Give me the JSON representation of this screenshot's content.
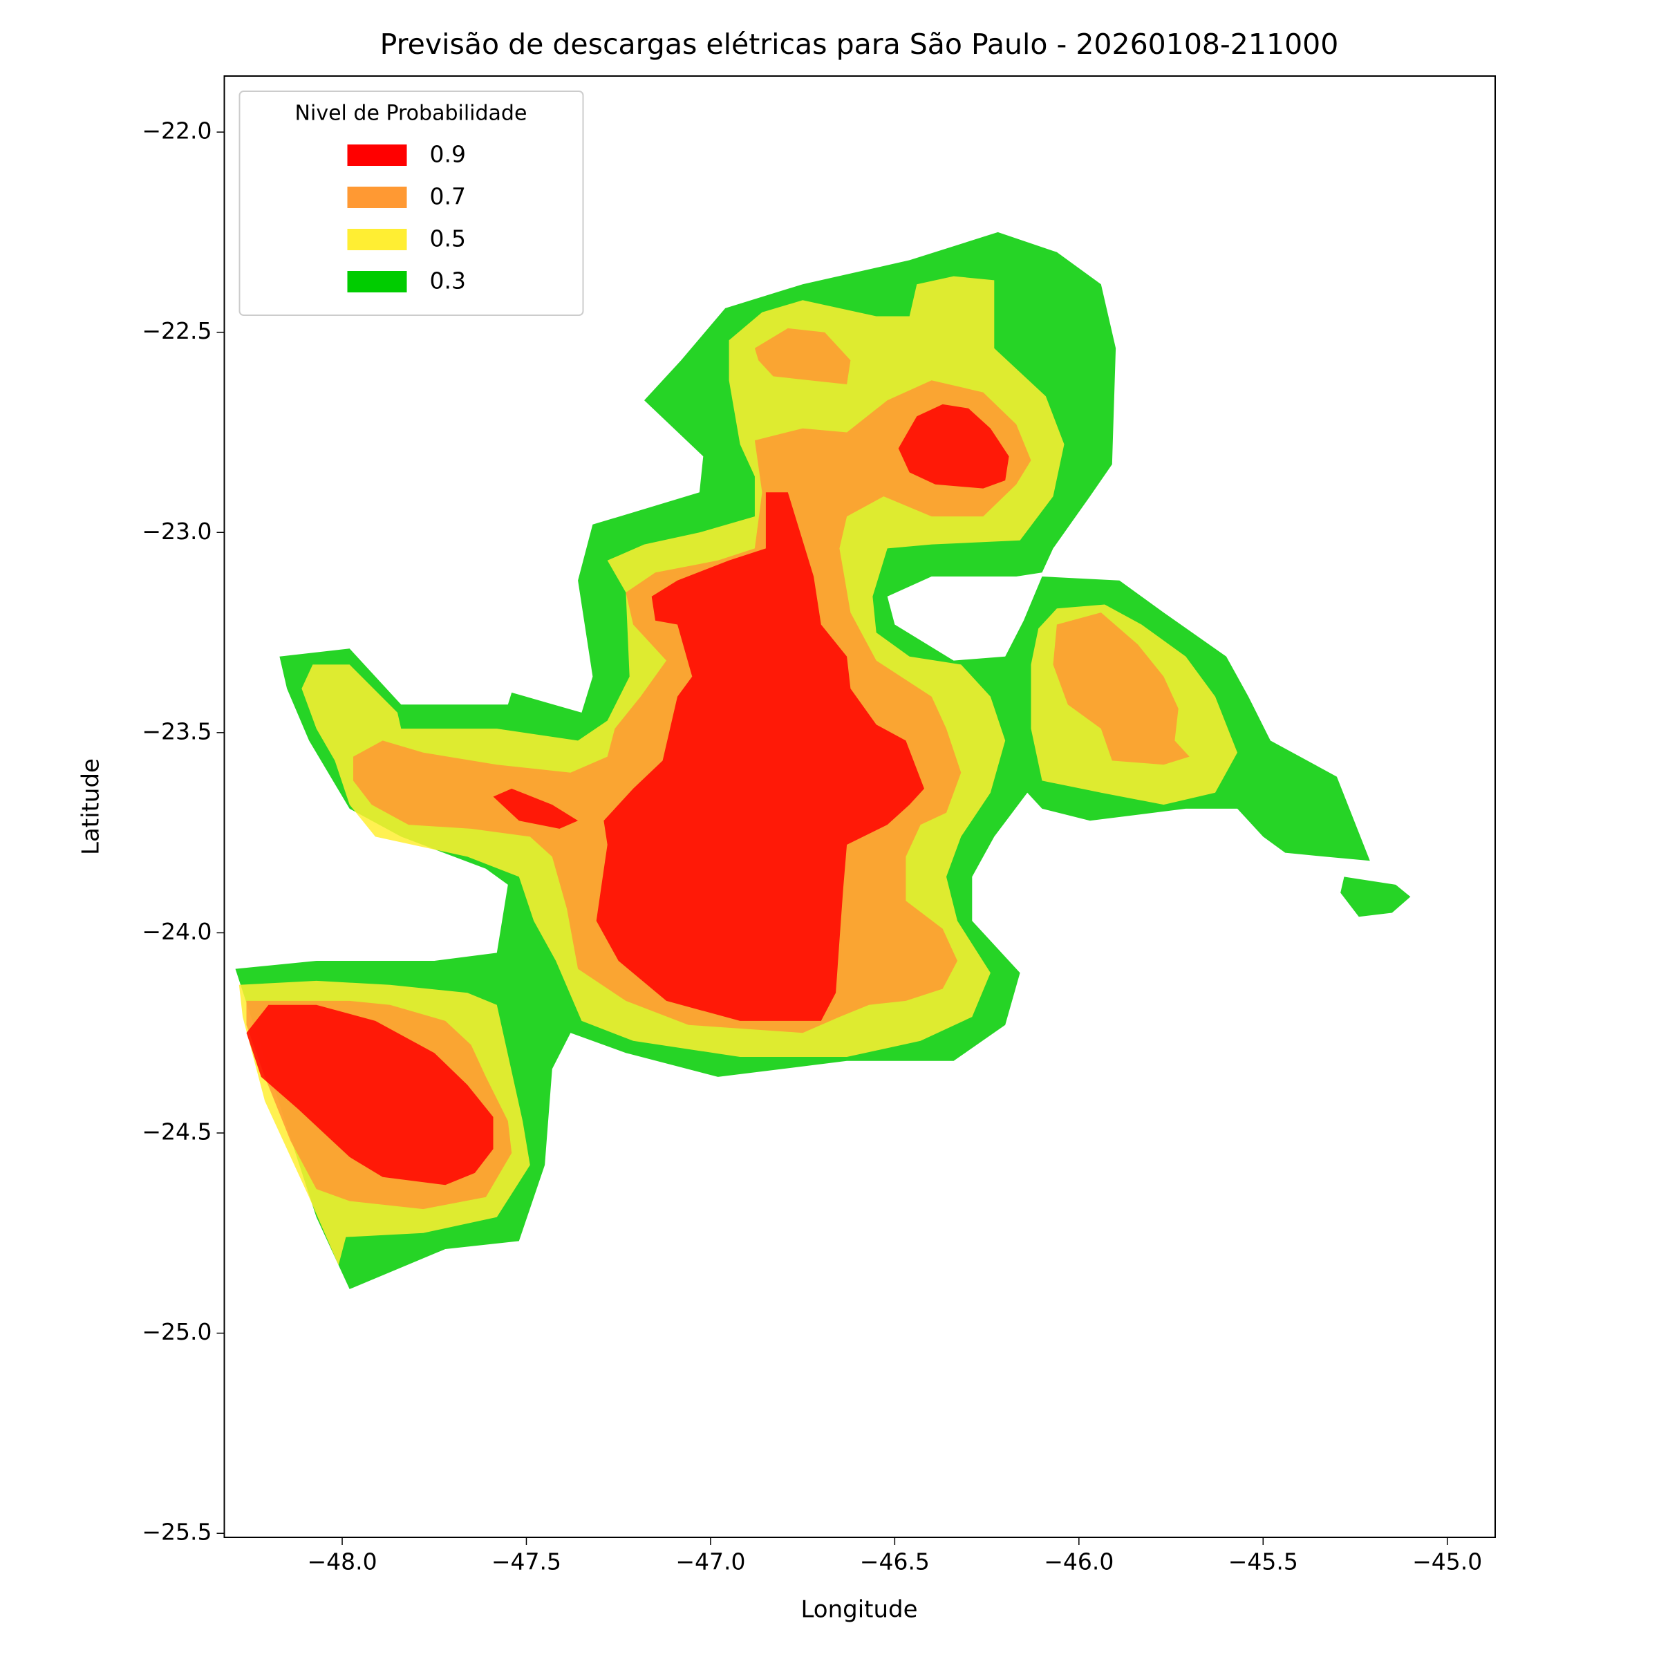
{
  "chart_data": {
    "type": "contour",
    "title": "Previsão de descargas elétricas para São Paulo - 20260108-211000",
    "xlabel": "Longitude",
    "ylabel": "Latitude",
    "xlim": [
      -48.32,
      -44.87
    ],
    "ylim": [
      -25.51,
      -21.86
    ],
    "xticks": [
      {
        "value": -48.0,
        "label": "−48.0"
      },
      {
        "value": -47.5,
        "label": "−47.5"
      },
      {
        "value": -47.0,
        "label": "−47.0"
      },
      {
        "value": -46.5,
        "label": "−46.5"
      },
      {
        "value": -46.0,
        "label": "−46.0"
      },
      {
        "value": -45.5,
        "label": "−45.5"
      },
      {
        "value": -45.0,
        "label": "−45.0"
      }
    ],
    "yticks": [
      {
        "value": -22.0,
        "label": "−22.0"
      },
      {
        "value": -22.5,
        "label": "−22.5"
      },
      {
        "value": -23.0,
        "label": "−23.0"
      },
      {
        "value": -23.5,
        "label": "−23.5"
      },
      {
        "value": -24.0,
        "label": "−24.0"
      },
      {
        "value": -24.5,
        "label": "−24.5"
      },
      {
        "value": -25.0,
        "label": "−25.0"
      },
      {
        "value": -25.5,
        "label": "−25.5"
      }
    ],
    "legend_title": "Nivel de Probabilidade",
    "legend_position": "upper left",
    "fill_opacity": 0.85,
    "series": [
      {
        "name": "0.9",
        "color": "#ff0000",
        "regions": [
          {
            "x": [
              -47.16,
              -47.09,
              -46.95,
              -46.85,
              -46.85,
              -46.79,
              -46.72,
              -46.7,
              -46.63,
              -46.62,
              -46.55,
              -46.47,
              -46.42,
              -46.46,
              -46.52,
              -46.63,
              -46.64,
              -46.65,
              -46.66,
              -46.7,
              -46.92,
              -47.12,
              -47.25,
              -47.31,
              -47.28,
              -47.29,
              -47.21,
              -47.13,
              -47.09,
              -47.05,
              -47.09,
              -47.15
            ],
            "y": [
              -23.16,
              -23.12,
              -23.07,
              -23.04,
              -22.9,
              -22.9,
              -23.11,
              -23.23,
              -23.31,
              -23.39,
              -23.48,
              -23.52,
              -23.64,
              -23.68,
              -23.73,
              -23.78,
              -23.89,
              -24.02,
              -24.15,
              -24.22,
              -24.22,
              -24.17,
              -24.07,
              -23.97,
              -23.78,
              -23.72,
              -23.64,
              -23.57,
              -23.41,
              -23.36,
              -23.23,
              -23.22
            ]
          },
          {
            "x": [
              -47.59,
              -47.54,
              -47.43,
              -47.36,
              -47.41,
              -47.52
            ],
            "y": [
              -23.66,
              -23.64,
              -23.68,
              -23.72,
              -23.74,
              -23.72
            ]
          },
          {
            "x": [
              -46.49,
              -46.44,
              -46.37,
              -46.3,
              -46.24,
              -46.19,
              -46.2,
              -46.26,
              -46.39,
              -46.46
            ],
            "y": [
              -22.79,
              -22.71,
              -22.68,
              -22.69,
              -22.74,
              -22.81,
              -22.87,
              -22.89,
              -22.88,
              -22.85
            ]
          },
          {
            "x": [
              -48.26,
              -48.2,
              -48.07,
              -47.91,
              -47.75,
              -47.66,
              -47.59,
              -47.59,
              -47.64,
              -47.72,
              -47.89,
              -47.98,
              -48.12,
              -48.22
            ],
            "y": [
              -24.25,
              -24.18,
              -24.18,
              -24.22,
              -24.3,
              -24.38,
              -24.46,
              -24.54,
              -24.6,
              -24.63,
              -24.61,
              -24.56,
              -24.44,
              -24.36
            ]
          }
        ]
      },
      {
        "name": "0.7",
        "color": "#ff9933",
        "regions": [
          {
            "x": [
              -47.97,
              -47.89,
              -47.78,
              -47.58,
              -47.38,
              -47.28,
              -47.26,
              -47.19,
              -47.12,
              -47.21,
              -47.23,
              -47.15,
              -46.98,
              -46.88,
              -46.86,
              -46.88,
              -46.75,
              -46.63,
              -46.52,
              -46.4,
              -46.26,
              -46.17,
              -46.13,
              -46.17,
              -46.26,
              -46.4,
              -46.53,
              -46.63,
              -46.65,
              -46.62,
              -46.55,
              -46.4,
              -46.36,
              -46.32,
              -46.36,
              -46.43,
              -46.47,
              -46.47,
              -46.37,
              -46.33,
              -46.37,
              -46.47,
              -46.57,
              -46.65,
              -46.75,
              -47.06,
              -47.23,
              -47.36,
              -47.39,
              -47.43,
              -47.49,
              -47.65,
              -47.82,
              -47.92,
              -47.97
            ],
            "y": [
              -23.56,
              -23.52,
              -23.55,
              -23.58,
              -23.6,
              -23.56,
              -23.49,
              -23.41,
              -23.32,
              -23.23,
              -23.15,
              -23.1,
              -23.07,
              -23.04,
              -22.9,
              -22.77,
              -22.74,
              -22.75,
              -22.67,
              -22.62,
              -22.65,
              -22.73,
              -22.82,
              -22.88,
              -22.96,
              -22.96,
              -22.91,
              -22.96,
              -23.04,
              -23.2,
              -23.32,
              -23.41,
              -23.49,
              -23.6,
              -23.7,
              -23.73,
              -23.81,
              -23.92,
              -23.99,
              -24.07,
              -24.14,
              -24.17,
              -24.18,
              -24.21,
              -24.25,
              -24.23,
              -24.17,
              -24.09,
              -23.94,
              -23.81,
              -23.76,
              -23.74,
              -23.73,
              -23.68,
              -23.62
            ]
          },
          {
            "x": [
              -46.88,
              -46.79,
              -46.69,
              -46.62,
              -46.63,
              -46.73,
              -46.83,
              -46.87
            ],
            "y": [
              -22.54,
              -22.49,
              -22.5,
              -22.57,
              -22.63,
              -22.62,
              -22.61,
              -22.57
            ]
          },
          {
            "x": [
              -48.26,
              -47.98,
              -47.87,
              -47.72,
              -47.65,
              -47.61,
              -47.55,
              -47.54,
              -47.61,
              -47.78,
              -47.98,
              -48.07,
              -48.14,
              -48.21,
              -48.26
            ],
            "y": [
              -24.17,
              -24.17,
              -24.18,
              -24.22,
              -24.28,
              -24.36,
              -24.47,
              -24.55,
              -24.66,
              -24.69,
              -24.67,
              -24.64,
              -24.52,
              -24.36,
              -24.23
            ]
          },
          {
            "x": [
              -46.06,
              -45.94,
              -45.84,
              -45.77,
              -45.73,
              -45.74,
              -45.7,
              -45.77,
              -45.91,
              -45.94,
              -46.03,
              -46.07
            ],
            "y": [
              -23.23,
              -23.2,
              -23.28,
              -23.36,
              -23.44,
              -23.52,
              -23.56,
              -23.58,
              -23.57,
              -23.49,
              -23.43,
              -23.33
            ]
          }
        ]
      },
      {
        "name": "0.5",
        "color": "#ffee33",
        "regions": [
          {
            "x": [
              -48.08,
              -47.98,
              -47.85,
              -47.84,
              -47.58,
              -47.36,
              -47.28,
              -47.22,
              -47.23,
              -47.28,
              -47.18,
              -47.03,
              -46.88,
              -46.88,
              -46.92,
              -46.95,
              -46.95,
              -46.86,
              -46.75,
              -46.55,
              -46.46,
              -46.44,
              -46.34,
              -46.23,
              -46.23,
              -46.09,
              -46.04,
              -46.07,
              -46.16,
              -46.4,
              -46.52,
              -46.56,
              -46.55,
              -46.46,
              -46.32,
              -46.24,
              -46.2,
              -46.24,
              -46.32,
              -46.36,
              -46.33,
              -46.24,
              -46.29,
              -46.43,
              -46.63,
              -46.92,
              -47.21,
              -47.35,
              -47.42,
              -47.48,
              -47.52,
              -47.66,
              -47.91,
              -47.98,
              -48.02,
              -48.07,
              -48.11
            ],
            "y": [
              -23.33,
              -23.33,
              -23.45,
              -23.49,
              -23.49,
              -23.52,
              -23.47,
              -23.36,
              -23.15,
              -23.07,
              -23.03,
              -23.0,
              -22.96,
              -22.86,
              -22.78,
              -22.62,
              -22.52,
              -22.45,
              -22.42,
              -22.46,
              -22.46,
              -22.38,
              -22.36,
              -22.37,
              -22.54,
              -22.66,
              -22.78,
              -22.91,
              -23.02,
              -23.03,
              -23.04,
              -23.16,
              -23.25,
              -23.31,
              -23.33,
              -23.41,
              -23.52,
              -23.65,
              -23.76,
              -23.86,
              -23.97,
              -24.1,
              -24.21,
              -24.27,
              -24.31,
              -24.31,
              -24.27,
              -24.22,
              -24.07,
              -23.97,
              -23.86,
              -23.81,
              -23.76,
              -23.68,
              -23.57,
              -23.49,
              -23.39
            ]
          },
          {
            "x": [
              -48.28,
              -48.07,
              -47.87,
              -47.66,
              -47.58,
              -47.51,
              -47.49,
              -47.58,
              -47.78,
              -47.99,
              -48.01,
              -48.09,
              -48.21,
              -48.27
            ],
            "y": [
              -24.13,
              -24.12,
              -24.13,
              -24.15,
              -24.18,
              -24.47,
              -24.58,
              -24.71,
              -24.75,
              -24.76,
              -24.83,
              -24.66,
              -24.42,
              -24.21
            ]
          },
          {
            "x": [
              -46.11,
              -46.06,
              -45.93,
              -45.83,
              -45.71,
              -45.63,
              -45.57,
              -45.63,
              -45.77,
              -45.94,
              -46.1,
              -46.13,
              -46.13
            ],
            "y": [
              -23.24,
              -23.19,
              -23.18,
              -23.23,
              -23.31,
              -23.41,
              -23.55,
              -23.65,
              -23.68,
              -23.65,
              -23.62,
              -23.49,
              -23.33
            ]
          }
        ]
      },
      {
        "name": "0.3",
        "color": "#00cc00",
        "regions": [
          {
            "x": [
              -48.17,
              -47.98,
              -47.84,
              -47.55,
              -47.54,
              -47.35,
              -47.32,
              -47.36,
              -47.32,
              -47.21,
              -47.03,
              -47.02,
              -47.18,
              -47.08,
              -46.96,
              -46.75,
              -46.46,
              -46.22,
              -46.06,
              -45.94,
              -45.9,
              -45.91,
              -45.97,
              -46.07,
              -46.1,
              -46.17,
              -46.4,
              -46.52,
              -46.5,
              -46.34,
              -46.2,
              -46.15,
              -46.1,
              -45.89,
              -45.77,
              -45.6,
              -45.54,
              -45.48,
              -45.3,
              -45.21,
              -45.33,
              -45.44,
              -45.5,
              -45.57,
              -45.71,
              -45.97,
              -46.1,
              -46.14,
              -46.23,
              -46.29,
              -46.29,
              -46.16,
              -46.2,
              -46.34,
              -46.63,
              -46.98,
              -47.23,
              -47.38,
              -47.43,
              -47.45,
              -47.52,
              -47.72,
              -47.98,
              -48.07,
              -48.29,
              -48.07,
              -47.75,
              -47.58,
              -47.55,
              -47.61,
              -47.84,
              -47.98,
              -48.09,
              -48.15
            ],
            "y": [
              -23.31,
              -23.29,
              -23.43,
              -23.43,
              -23.4,
              -23.45,
              -23.36,
              -23.12,
              -22.98,
              -22.95,
              -22.9,
              -22.81,
              -22.67,
              -22.57,
              -22.44,
              -22.38,
              -22.32,
              -22.25,
              -22.3,
              -22.38,
              -22.54,
              -22.83,
              -22.91,
              -23.04,
              -23.1,
              -23.11,
              -23.11,
              -23.16,
              -23.23,
              -23.32,
              -23.31,
              -23.22,
              -23.11,
              -23.12,
              -23.2,
              -23.31,
              -23.41,
              -23.52,
              -23.61,
              -23.82,
              -23.81,
              -23.8,
              -23.76,
              -23.69,
              -23.69,
              -23.72,
              -23.69,
              -23.65,
              -23.76,
              -23.86,
              -23.97,
              -24.1,
              -24.23,
              -24.32,
              -24.32,
              -24.36,
              -24.3,
              -24.25,
              -24.34,
              -24.58,
              -24.77,
              -24.79,
              -24.89,
              -24.71,
              -24.09,
              -24.07,
              -24.07,
              -24.05,
              -23.88,
              -23.84,
              -23.76,
              -23.69,
              -23.52,
              -23.39
            ]
          },
          {
            "x": [
              -45.28,
              -45.14,
              -45.1,
              -45.15,
              -45.24,
              -45.29
            ],
            "y": [
              -23.86,
              -23.88,
              -23.91,
              -23.95,
              -23.96,
              -23.9
            ]
          }
        ]
      }
    ]
  }
}
